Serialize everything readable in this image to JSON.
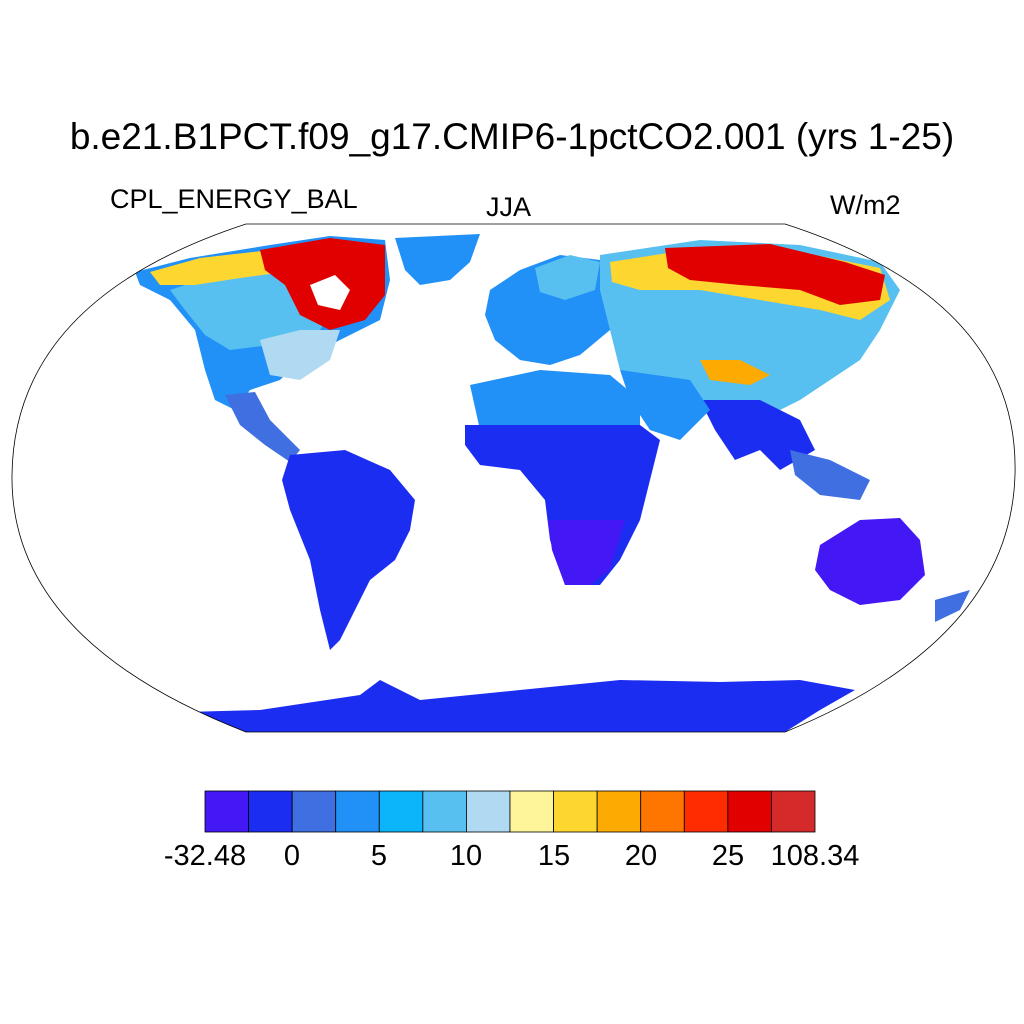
{
  "title": "b.e21.B1PCT.f09_g17.CMIP6-1pctCO2.001 (yrs 1-25)",
  "subtitle_left": "CPL_ENERGY_BAL",
  "subtitle_center": "JJA",
  "subtitle_right": "W/m2",
  "colorbar": {
    "colors": [
      "#4417f5",
      "#1c2df2",
      "#3f6fe0",
      "#2190f7",
      "#0cb4f9",
      "#58c0f0",
      "#b0daf2",
      "#fef59b",
      "#fed630",
      "#fdab03",
      "#fe7600",
      "#fe2c00",
      "#e00000",
      "#d42a2a"
    ],
    "labels": [
      "-32.48",
      "0",
      "5",
      "10",
      "15",
      "20",
      "25",
      "108.34"
    ]
  }
}
